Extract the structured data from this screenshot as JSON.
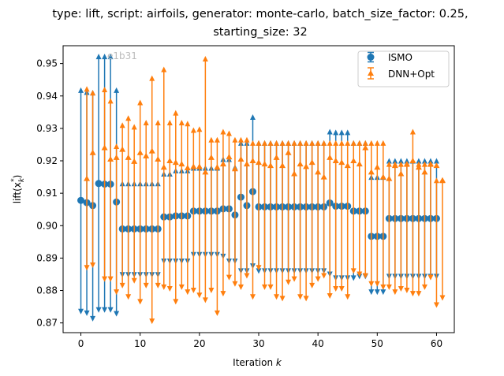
{
  "chart_data": {
    "type": "scatter",
    "title_line1": "type: lift, script: airfoils, generator: monte-carlo, batch_size_factor: 0.25,",
    "title_line2": "starting_size: 32",
    "xlabel": "Iteration",
    "xlabel_var": "k",
    "ylabel": "lift(x",
    "ylabel_sub": "k",
    "ylabel_sup": "*",
    "ylabel_end": ")",
    "watermark": "e1b31",
    "xlim": [
      -3,
      63
    ],
    "ylim": [
      0.867,
      0.9555
    ],
    "x_ticks": [
      0,
      10,
      20,
      30,
      40,
      50,
      60
    ],
    "x_tick_labels": [
      "0",
      "10",
      "20",
      "30",
      "40",
      "50",
      "60"
    ],
    "y_ticks": [
      0.87,
      0.88,
      0.89,
      0.9,
      0.91,
      0.92,
      0.93,
      0.94,
      0.95
    ],
    "y_tick_labels": [
      "0.87",
      "0.88",
      "0.89",
      "0.90",
      "0.91",
      "0.92",
      "0.93",
      "0.94",
      "0.95"
    ],
    "legend_position": "top-right",
    "series": [
      {
        "name": "ISMO",
        "color": "#1f77b4",
        "marker": "circle",
        "x": [
          0,
          1,
          2,
          3,
          4,
          5,
          6,
          7,
          8,
          9,
          10,
          11,
          12,
          13,
          14,
          15,
          16,
          17,
          18,
          19,
          20,
          21,
          22,
          23,
          24,
          25,
          26,
          27,
          28,
          29,
          30,
          31,
          32,
          33,
          34,
          35,
          36,
          37,
          38,
          39,
          40,
          41,
          42,
          43,
          44,
          45,
          46,
          47,
          48,
          49,
          50,
          51,
          52,
          53,
          54,
          55,
          56,
          57,
          58,
          59,
          60
        ],
        "y": [
          0.9078,
          0.9071,
          0.9062,
          0.913,
          0.9128,
          0.9128,
          0.9073,
          0.899,
          0.899,
          0.899,
          0.899,
          0.899,
          0.899,
          0.899,
          0.9027,
          0.9027,
          0.903,
          0.903,
          0.903,
          0.9045,
          0.9045,
          0.9045,
          0.9045,
          0.9045,
          0.9052,
          0.9052,
          0.9033,
          0.9088,
          0.9062,
          0.9105,
          0.9058,
          0.9058,
          0.9058,
          0.9058,
          0.9058,
          0.9058,
          0.9058,
          0.9058,
          0.9058,
          0.9058,
          0.9058,
          0.9058,
          0.907,
          0.906,
          0.906,
          0.906,
          0.9045,
          0.9045,
          0.9045,
          0.8967,
          0.8967,
          0.8967,
          0.9022,
          0.9022,
          0.9022,
          0.9022,
          0.9022,
          0.9022,
          0.9022,
          0.9022,
          0.9022
        ],
        "err_low": [
          0.8735,
          0.873,
          0.8713,
          0.874,
          0.874,
          0.874,
          0.8728,
          0.8848,
          0.8848,
          0.8848,
          0.8848,
          0.8848,
          0.8848,
          0.8848,
          0.889,
          0.889,
          0.889,
          0.889,
          0.889,
          0.891,
          0.891,
          0.891,
          0.891,
          0.891,
          0.8905,
          0.889,
          0.889,
          0.886,
          0.886,
          0.8875,
          0.886,
          0.886,
          0.886,
          0.886,
          0.886,
          0.886,
          0.886,
          0.886,
          0.886,
          0.886,
          0.886,
          0.886,
          0.885,
          0.8838,
          0.8838,
          0.8838,
          0.8838,
          0.8843,
          0.8843,
          0.8795,
          0.8795,
          0.8795,
          0.8843,
          0.8843,
          0.8843,
          0.8843,
          0.8843,
          0.8843,
          0.8843,
          0.8843,
          0.8843
        ],
        "err_high": [
          0.9418,
          0.9412,
          0.941,
          0.9522,
          0.9522,
          0.9522,
          0.9418,
          0.913,
          0.913,
          0.913,
          0.913,
          0.913,
          0.913,
          0.913,
          0.916,
          0.916,
          0.917,
          0.917,
          0.917,
          0.9178,
          0.9178,
          0.9178,
          0.9178,
          0.9178,
          0.9205,
          0.9205,
          0.918,
          0.9255,
          0.9255,
          0.9335,
          0.9255,
          0.9255,
          0.9255,
          0.9255,
          0.9255,
          0.9255,
          0.9255,
          0.9255,
          0.9255,
          0.9255,
          0.9255,
          0.9255,
          0.929,
          0.9288,
          0.9288,
          0.9288,
          0.9255,
          0.9255,
          0.9255,
          0.915,
          0.915,
          0.915,
          0.92,
          0.92,
          0.92,
          0.92,
          0.92,
          0.92,
          0.92,
          0.92,
          0.92
        ]
      },
      {
        "name": "DNN+Opt",
        "color": "#ff7f0e",
        "marker": "triangle",
        "x": [
          1,
          2,
          4,
          5,
          6,
          7,
          8,
          9,
          10,
          11,
          12,
          13,
          14,
          15,
          16,
          17,
          18,
          19,
          20,
          21,
          22,
          23,
          24,
          25,
          26,
          27,
          28,
          29,
          30,
          31,
          32,
          33,
          34,
          35,
          36,
          37,
          38,
          39,
          40,
          41,
          42,
          43,
          44,
          45,
          46,
          47,
          48,
          49,
          50,
          51,
          52,
          53,
          54,
          55,
          56,
          57,
          58,
          59,
          60,
          61
        ],
        "y": [
          0.9145,
          0.9225,
          0.924,
          0.9205,
          0.921,
          0.9235,
          0.921,
          0.9198,
          0.9225,
          0.9215,
          0.923,
          0.9205,
          0.918,
          0.92,
          0.9195,
          0.919,
          0.9178,
          0.9182,
          0.9182,
          0.9165,
          0.921,
          0.918,
          0.919,
          0.9212,
          0.9175,
          0.9205,
          0.919,
          0.92,
          0.9195,
          0.919,
          0.9185,
          0.921,
          0.9185,
          0.9225,
          0.916,
          0.919,
          0.9182,
          0.9195,
          0.9165,
          0.915,
          0.921,
          0.92,
          0.9195,
          0.9185,
          0.92,
          0.919,
          0.924,
          0.9165,
          0.918,
          0.915,
          0.9145,
          0.9185,
          0.916,
          0.919,
          0.92,
          0.918,
          0.9165,
          0.919,
          0.9185,
          0.914
        ],
        "err_low": [
          0.887,
          0.8878,
          0.8835,
          0.8835,
          0.8795,
          0.8815,
          0.878,
          0.883,
          0.8765,
          0.8815,
          0.8705,
          0.8815,
          0.881,
          0.8805,
          0.8765,
          0.881,
          0.8795,
          0.88,
          0.8785,
          0.877,
          0.88,
          0.873,
          0.879,
          0.884,
          0.882,
          0.881,
          0.8845,
          0.878,
          0.887,
          0.881,
          0.881,
          0.878,
          0.8775,
          0.8825,
          0.8835,
          0.878,
          0.8775,
          0.8815,
          0.8835,
          0.8845,
          0.8783,
          0.8805,
          0.8805,
          0.878,
          0.886,
          0.885,
          0.8845,
          0.882,
          0.882,
          0.881,
          0.881,
          0.8795,
          0.8805,
          0.88,
          0.879,
          0.879,
          0.881,
          0.884,
          0.8755,
          0.8777
        ],
        "err_high": [
          0.9422,
          0.941,
          0.942,
          0.9385,
          0.9245,
          0.931,
          0.9332,
          0.9305,
          0.938,
          0.9318,
          0.9455,
          0.9318,
          0.9482,
          0.9318,
          0.9348,
          0.9318,
          0.9315,
          0.9295,
          0.9298,
          0.9515,
          0.9265,
          0.9265,
          0.929,
          0.9285,
          0.9265,
          0.9265,
          0.9265,
          0.9255,
          0.9255,
          0.9255,
          0.9255,
          0.9255,
          0.9255,
          0.9255,
          0.9255,
          0.9255,
          0.9255,
          0.9255,
          0.9255,
          0.9255,
          0.9255,
          0.9255,
          0.9255,
          0.9255,
          0.9255,
          0.9255,
          0.9255,
          0.9255,
          0.9255,
          0.9255,
          0.919,
          0.919,
          0.919,
          0.919,
          0.929,
          0.919,
          0.919,
          0.919,
          0.914,
          0.914
        ]
      }
    ]
  }
}
